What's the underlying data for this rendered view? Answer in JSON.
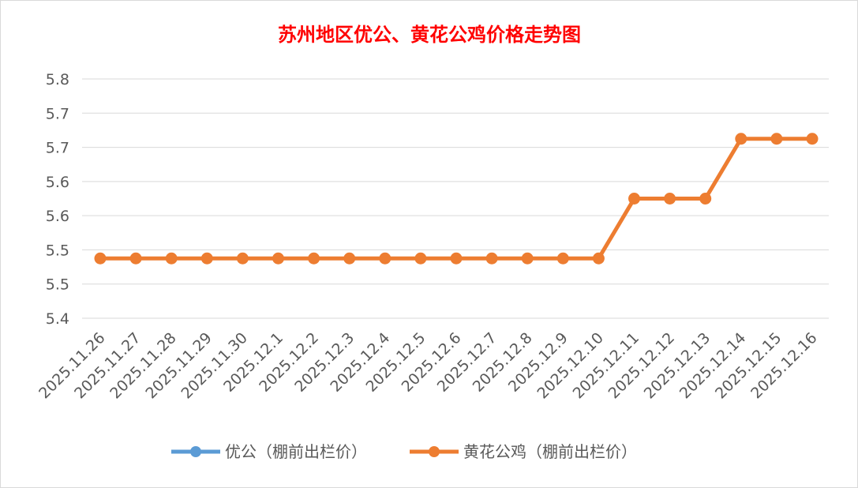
{
  "chart_data": {
    "type": "line",
    "title": "苏州地区优公、黄花公鸡价格走势图",
    "xlabel": "",
    "ylabel": "",
    "categories": [
      "2025.11.26",
      "2025.11.27",
      "2025.11.28",
      "2025.11.29",
      "2025.11.30",
      "2025.12.1",
      "2025.12.2",
      "2025.12.3",
      "2025.12.4",
      "2025.12.5",
      "2025.12.6",
      "2025.12.7",
      "2025.12.8",
      "2025.12.9",
      "2025.12.10",
      "2025.12.11",
      "2025.12.12",
      "2025.12.13",
      "2025.12.14",
      "2025.12.15",
      "2025.12.16"
    ],
    "y_ticks": [
      "5.4",
      "5.5",
      "5.5",
      "5.6",
      "5.6",
      "5.7",
      "5.7",
      "5.8"
    ],
    "ylim": [
      5.4,
      5.8
    ],
    "grid": true,
    "legend_position": "bottom",
    "series": [
      {
        "name": "优公（棚前出栏价）",
        "color": "#5b9bd5",
        "values": [
          null,
          null,
          null,
          null,
          null,
          null,
          null,
          null,
          null,
          null,
          null,
          null,
          null,
          null,
          null,
          null,
          null,
          null,
          null,
          null,
          null
        ]
      },
      {
        "name": "黄花公鸡（棚前出栏价）",
        "color": "#ed7d31",
        "values": [
          5.5,
          5.5,
          5.5,
          5.5,
          5.5,
          5.5,
          5.5,
          5.5,
          5.5,
          5.5,
          5.5,
          5.5,
          5.5,
          5.5,
          5.5,
          5.6,
          5.6,
          5.6,
          5.7,
          5.7,
          5.7
        ]
      }
    ]
  }
}
